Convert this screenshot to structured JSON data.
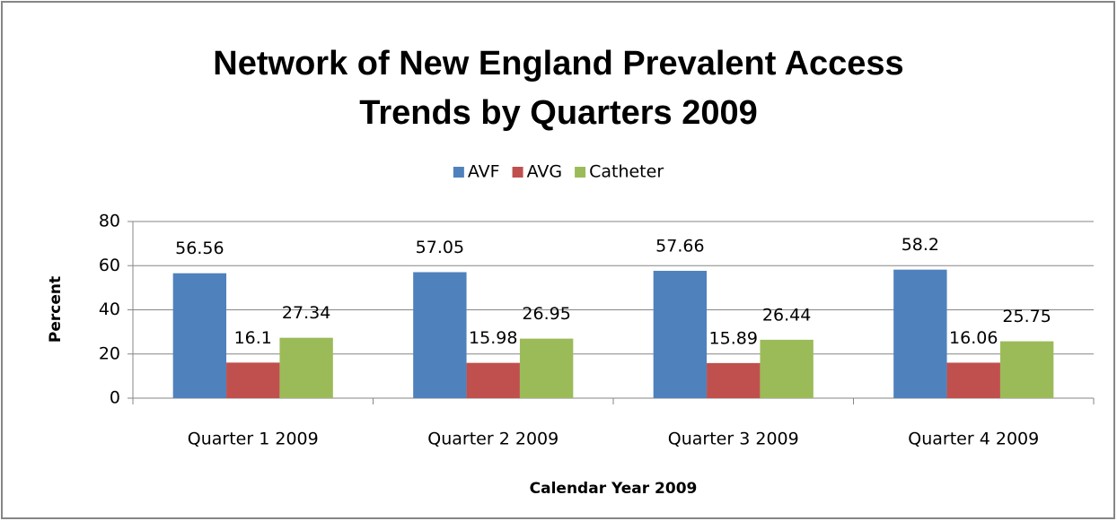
{
  "chart_data": {
    "type": "bar",
    "title": [
      "Network of New England Prevalent Access",
      "Trends by Quarters 2009"
    ],
    "x_label": "Calendar Year 2009",
    "y_label": "Percent",
    "categories": [
      "Quarter 1 2009",
      "Quarter 2 2009",
      "Quarter 3 2009",
      "Quarter 4 2009"
    ],
    "series": [
      {
        "name": "AVF",
        "color": "#4f81bd",
        "values": [
          56.56,
          57.05,
          57.66,
          58.2
        ]
      },
      {
        "name": "AVG",
        "color": "#c0504d",
        "values": [
          16.1,
          15.98,
          15.89,
          16.06
        ]
      },
      {
        "name": "Catheter",
        "color": "#9bbb59",
        "values": [
          27.34,
          26.95,
          26.44,
          25.75
        ]
      }
    ],
    "ylim": [
      0,
      80
    ],
    "yticks": [
      0,
      20,
      40,
      60,
      80
    ],
    "grid": true,
    "legend": "top"
  }
}
